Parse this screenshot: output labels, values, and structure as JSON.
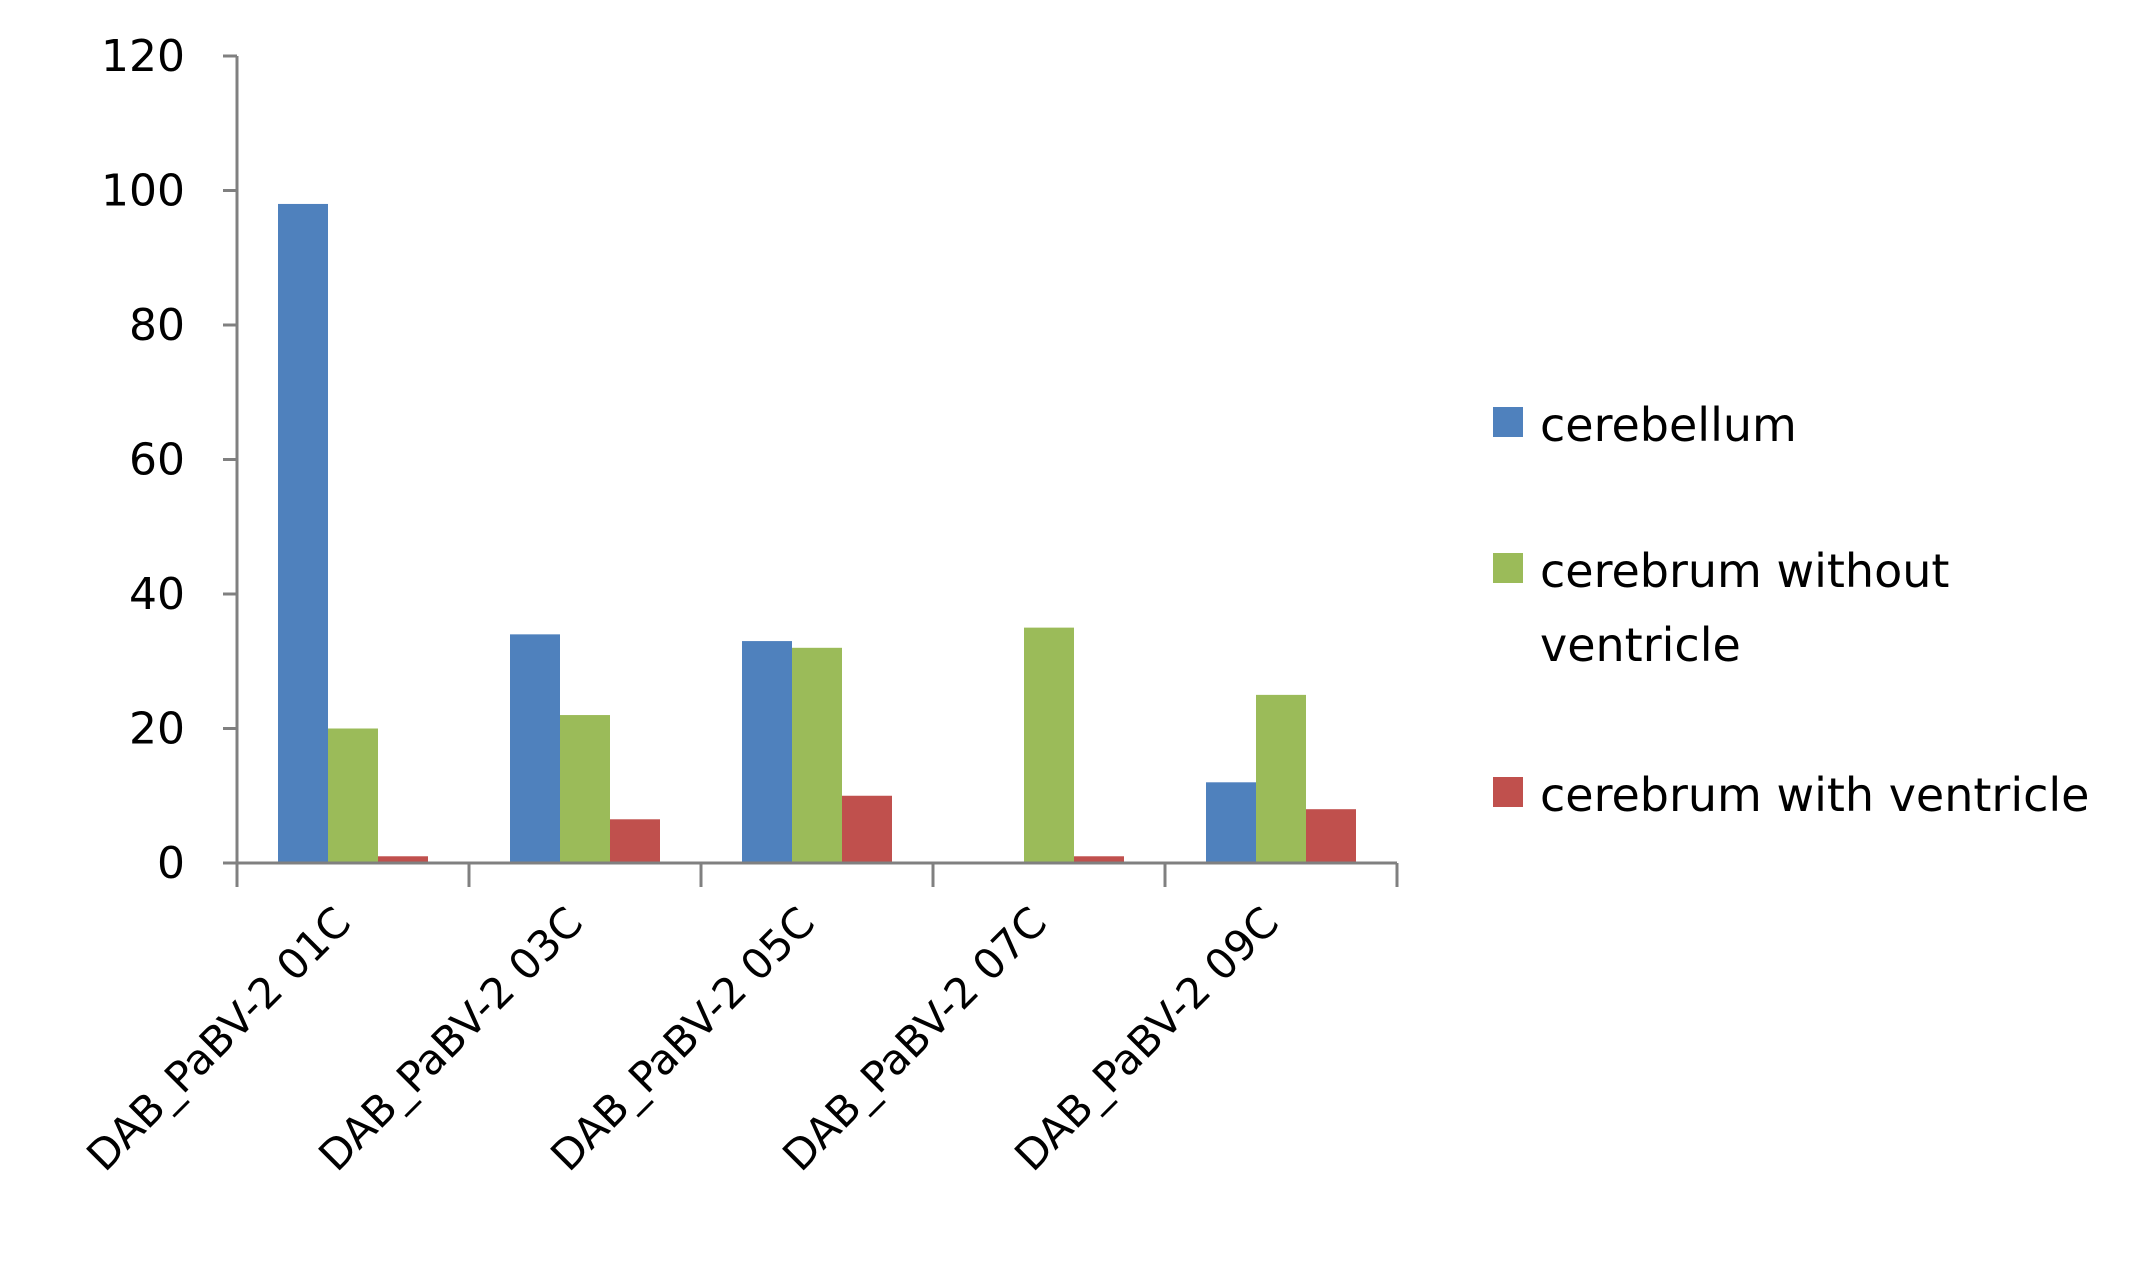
{
  "chart_data": {
    "type": "bar",
    "title": "",
    "xlabel": "",
    "ylabel": "",
    "ylim": [
      0,
      120
    ],
    "yticks": [
      0,
      20,
      40,
      60,
      80,
      100,
      120
    ],
    "grid": false,
    "legend_position": "right",
    "categories": [
      "DAB_PaBV-2 01C",
      "DAB_PaBV-2 03C",
      "DAB_PaBV-2 05C",
      "DAB_PaBV-2 07C",
      "DAB_PaBV-2 09C"
    ],
    "series": [
      {
        "name": "cerebellum",
        "legend_lines": [
          "cerebellum"
        ],
        "color": "#4F81BD",
        "values": [
          98,
          34,
          33,
          0,
          12
        ]
      },
      {
        "name": "cerebrum without ventricle",
        "legend_lines": [
          "cerebrum without",
          "ventricle"
        ],
        "color": "#9BBB59",
        "values": [
          20,
          22,
          32,
          35,
          25
        ]
      },
      {
        "name": "cerebrum with ventricle",
        "legend_lines": [
          "cerebrum with ventricle"
        ],
        "color": "#C0504D",
        "values": [
          1,
          6.5,
          10,
          1,
          8
        ]
      }
    ]
  }
}
